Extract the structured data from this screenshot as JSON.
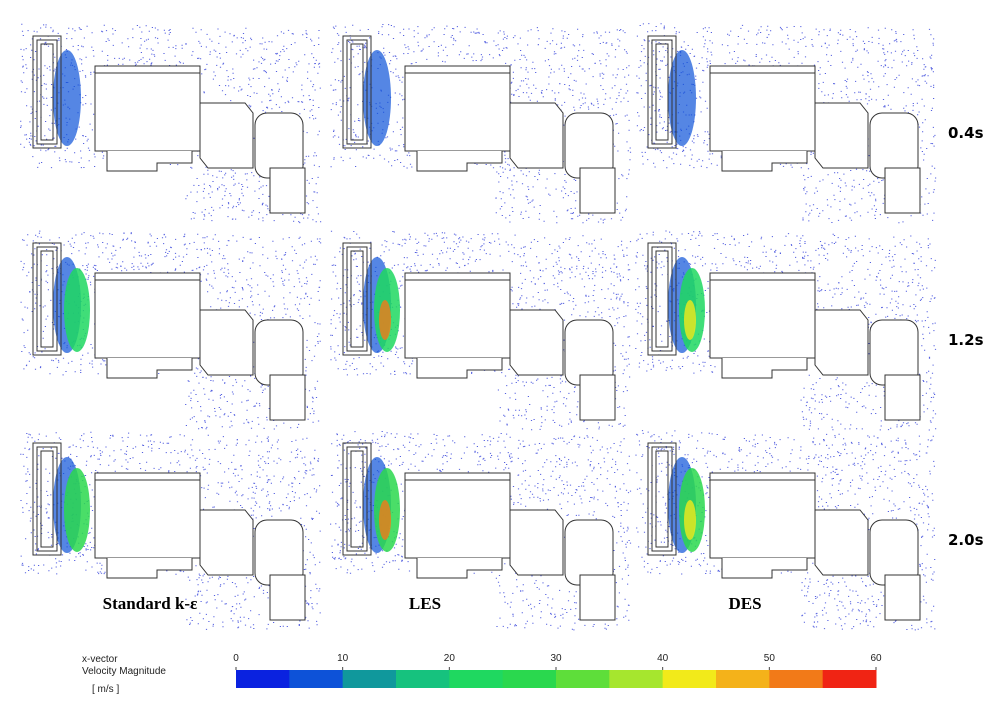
{
  "column_labels": [
    "Standard k-ε",
    "LES",
    "DES"
  ],
  "row_labels": [
    "0.4s",
    "1.2s",
    "2.0s"
  ],
  "legend": {
    "title_lines": [
      "x-vector",
      "Velocity Magnitude"
    ],
    "unit": "[ m/s ]",
    "range": [
      0,
      60
    ],
    "ticks": [
      0,
      10,
      20,
      30,
      40,
      50,
      60
    ],
    "colors": [
      "#0a22e0",
      "#0d52d8",
      "#10989c",
      "#16c27e",
      "#1fd860",
      "#2ad84e",
      "#5ede3a",
      "#a6e62e",
      "#f2ea1a",
      "#f4b21a",
      "#f27a18",
      "#f02414"
    ]
  }
}
